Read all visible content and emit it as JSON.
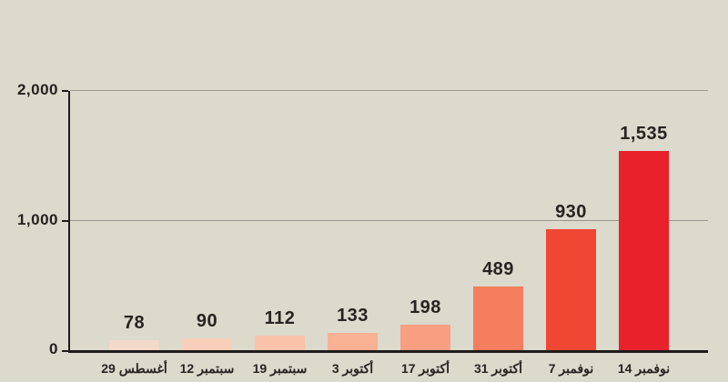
{
  "chart_data": {
    "type": "bar",
    "title": "",
    "xlabel": "",
    "ylabel": "",
    "categories": [
      "29 أغسطس",
      "12 سبتمبر",
      "19 سبتمبر",
      "3 أكتوبر",
      "17 أكتوبر",
      "31 أكتوبر",
      "7 نوفمبر",
      "14 نوفمبر"
    ],
    "values": [
      78,
      90,
      112,
      133,
      198,
      489,
      930,
      1535
    ],
    "display_values": [
      "78",
      "90",
      "112",
      "133",
      "198",
      "489",
      "930",
      "1,535"
    ],
    "bar_colors": [
      "#f3d9c9",
      "#f7cfba",
      "#f9c3a9",
      "#f9b194",
      "#f89f81",
      "#f47e5d",
      "#ef4733",
      "#e9212a"
    ],
    "y_tick_labels": {
      "t0": "0",
      "t1000": "1,000",
      "t2000": "2,000"
    },
    "ylim": [
      0,
      2000
    ],
    "grid": "horizontal gridlines at 1,000 and 2,000",
    "legend": "none",
    "background_color": "#dcd9cd",
    "axis_color": "#1d1c1a",
    "gridline_color": "#9a9890",
    "text_color": "#262420"
  }
}
